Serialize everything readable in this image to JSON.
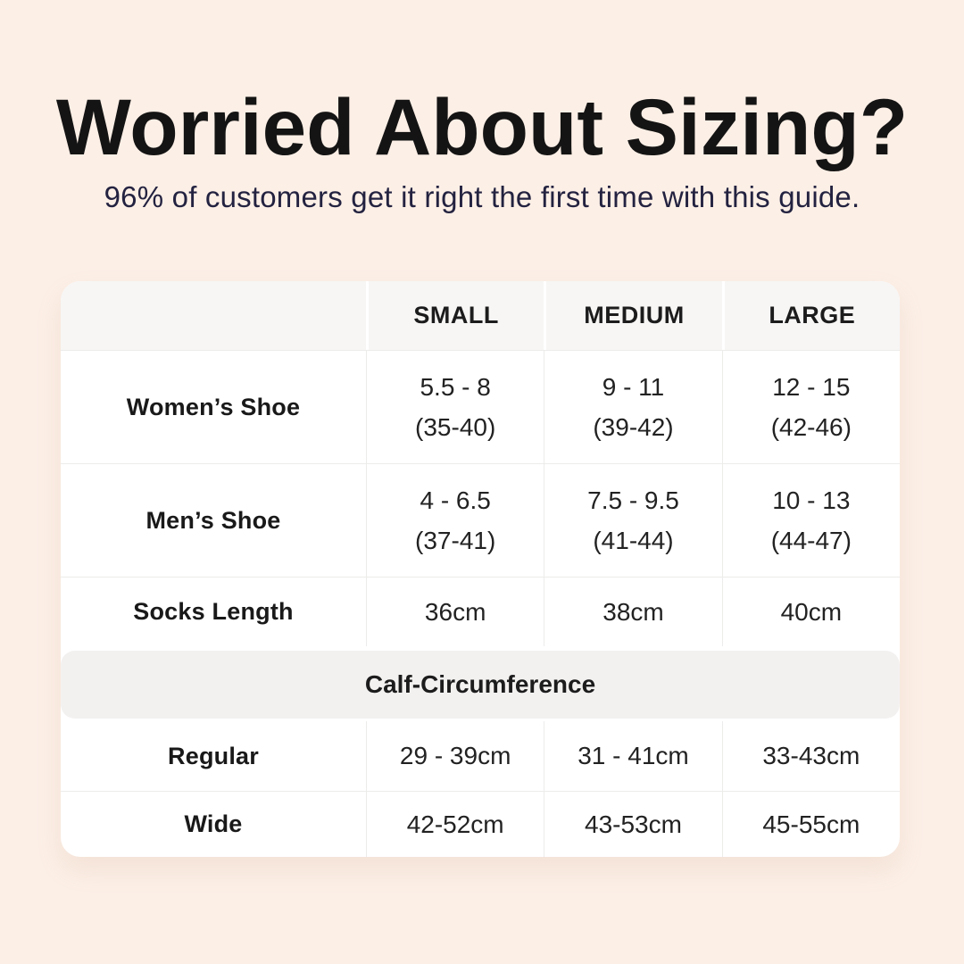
{
  "page": {
    "title": "Worried About Sizing?",
    "subtitle": "96% of customers get it right the first time with this guide.",
    "colors": {
      "background": "#fcefe6",
      "card": "#ffffff",
      "header_row_bg": "#f7f6f5",
      "section_band_bg": "#f3f1f0",
      "title_text": "#141414",
      "subtitle_text": "#232240",
      "cell_border": "#ececeb"
    }
  },
  "table": {
    "column_headers": [
      "SMALL",
      "MEDIUM",
      "LARGE"
    ],
    "shoe_rows": [
      {
        "label": "Women’s Shoe",
        "small": [
          "5.5 - 8",
          "(35-40)"
        ],
        "medium": [
          "9 - 11",
          "(39-42)"
        ],
        "large": [
          "12 - 15",
          "(42-46)"
        ]
      },
      {
        "label": "Men’s Shoe",
        "small": [
          "4 - 6.5",
          "(37-41)"
        ],
        "medium": [
          "7.5 - 9.5",
          "(41-44)"
        ],
        "large": [
          "10 - 13",
          "(44-47)"
        ]
      }
    ],
    "socks_row": {
      "label": "Socks Length",
      "small": "36cm",
      "medium": "38cm",
      "large": "40cm"
    },
    "section_header": "Calf-Circumference",
    "calf_rows": [
      {
        "label": "Regular",
        "small": "29 - 39cm",
        "medium": "31 - 41cm",
        "large": "33-43cm"
      },
      {
        "label": "Wide",
        "small": "42-52cm",
        "medium": "43-53cm",
        "large": "45-55cm"
      }
    ]
  }
}
